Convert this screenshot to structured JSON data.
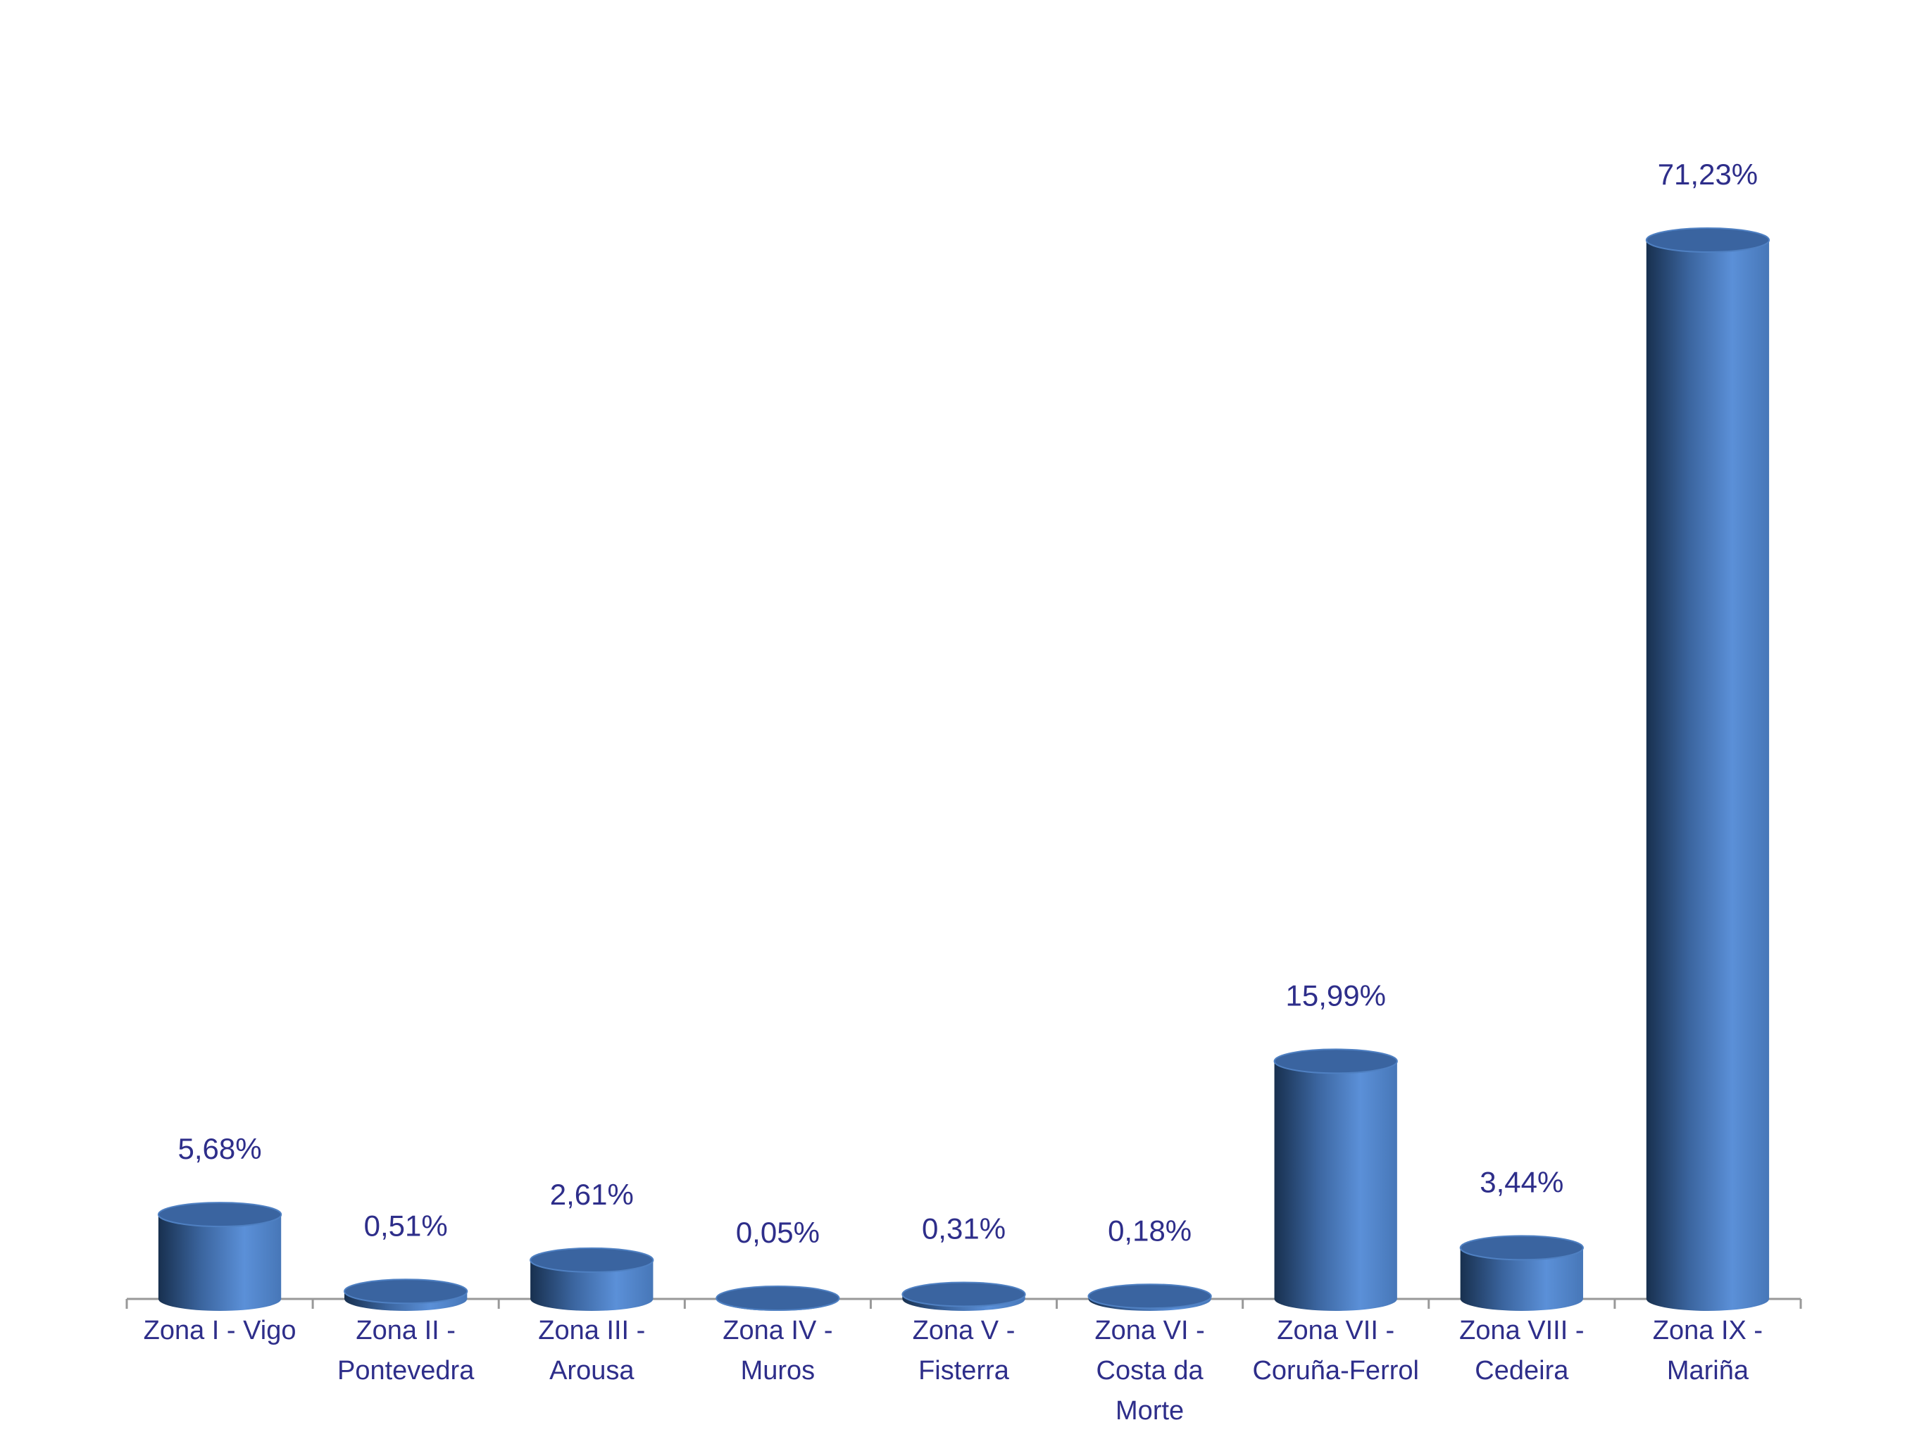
{
  "chart_data": {
    "type": "cylinder",
    "categories": [
      "Zona I - Vigo",
      "Zona II - Pontevedra",
      "Zona III - Arousa",
      "Zona IV - Muros",
      "Zona V - Fisterra",
      "Zona VI - Costa da Morte",
      "Zona VII - Coruña-Ferrol",
      "Zona VIII - Cedeira",
      "Zona IX - Mariña"
    ],
    "values": [
      5.68,
      0.51,
      2.61,
      0.05,
      0.31,
      0.18,
      15.99,
      3.44,
      71.23
    ],
    "value_labels": [
      "5,68%",
      "0,51%",
      "2,61%",
      "0,05%",
      "0,31%",
      "0,18%",
      "15,99%",
      "3,44%",
      "71,23%"
    ],
    "color": "#4a7cc0"
  }
}
